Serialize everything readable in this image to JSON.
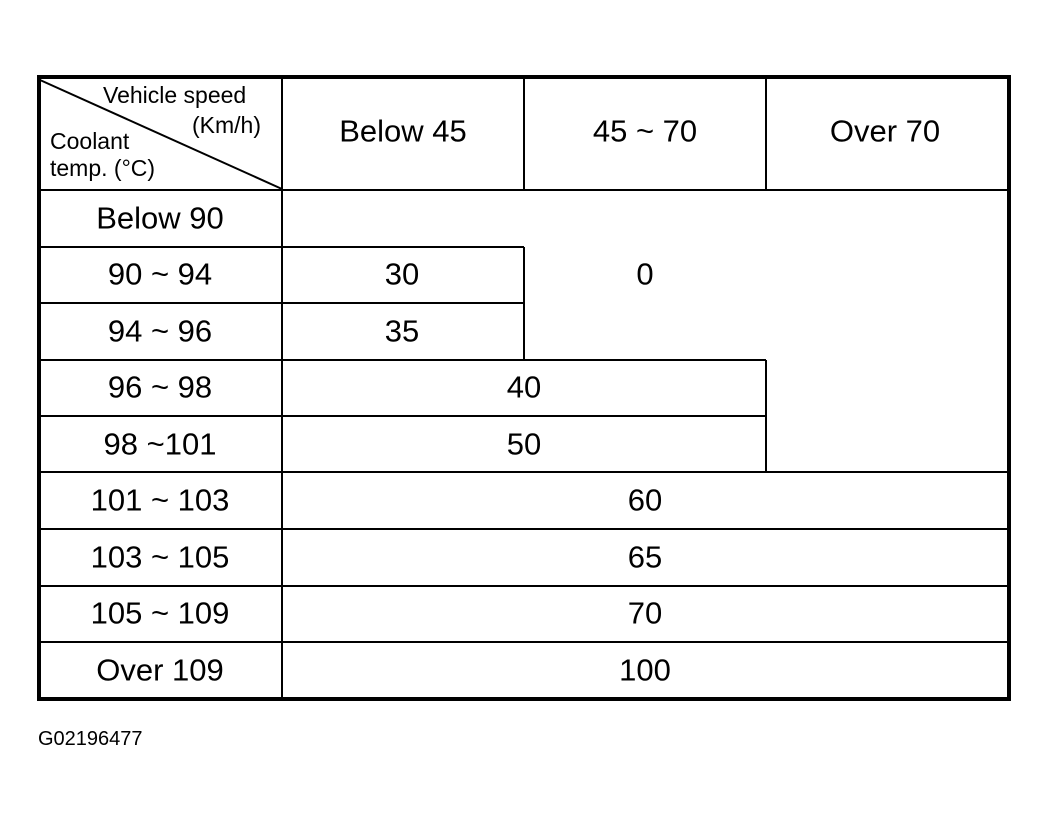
{
  "header": {
    "corner_top": "Vehicle speed",
    "corner_unit": "(Km/h)",
    "corner_bottom1": "Coolant",
    "corner_bottom2": "temp. (°C)",
    "columns": [
      "Below 45",
      "45 ~ 70",
      "Over 70"
    ]
  },
  "rows": [
    "Below 90",
    "90 ~ 94",
    "94 ~ 96",
    "96 ~ 98",
    "98 ~101",
    "101 ~ 103",
    "103 ~ 105",
    "105 ~ 109",
    "Over 109"
  ],
  "values": {
    "r90_94_below45": "30",
    "r94_96_below45": "35",
    "zero_region": "0",
    "r96_98": "40",
    "r98_101": "50",
    "r101_103": "60",
    "r103_105": "65",
    "r105_109": "70",
    "over109": "100"
  },
  "figure_code": "G02196477"
}
